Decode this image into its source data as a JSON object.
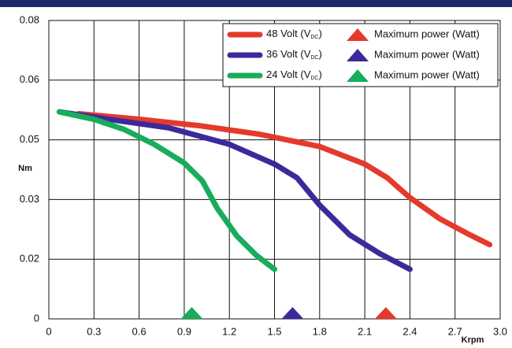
{
  "chart_data": {
    "type": "line",
    "y_label": "Nm",
    "x_label": "Krpm",
    "xlim": [
      0,
      3.0
    ],
    "xticks": [
      0,
      0.3,
      0.6,
      0.9,
      1.2,
      1.5,
      1.8,
      2.1,
      2.4,
      2.7,
      {
        "value": 3.0,
        "label": "3.0"
      }
    ],
    "ylim": [
      0,
      0.08
    ],
    "yticks": [
      0,
      {
        "value": 0.016,
        "label": "0.02"
      },
      {
        "value": 0.032,
        "label": "0.03"
      },
      {
        "value": 0.048,
        "label": "0.05"
      },
      {
        "value": 0.064,
        "label": "0.06"
      },
      0.08
    ],
    "grid": true,
    "legend": "upper right",
    "series": [
      {
        "legend_label": [
          "48 Volt (V",
          "DC",
          ")"
        ],
        "color": "#e43a2c",
        "x": [
          0.2,
          0.6,
          1.0,
          1.4,
          1.8,
          2.1,
          2.25,
          2.4,
          2.6,
          2.8,
          2.93
        ],
        "values": [
          0.055,
          0.0535,
          0.0518,
          0.0495,
          0.0462,
          0.0415,
          0.0378,
          0.0325,
          0.0268,
          0.0225,
          0.0199
        ],
        "max_power_label": "Maximum power (Watt)",
        "max_power_x": 2.24
      },
      {
        "legend_label": [
          "36 Volt (V",
          "DC",
          ")"
        ],
        "color": "#3b2a9b",
        "x": [
          0.07,
          0.4,
          0.8,
          1.2,
          1.5,
          1.65,
          1.8,
          2.0,
          2.2,
          2.4
        ],
        "values": [
          0.0555,
          0.0535,
          0.0512,
          0.0468,
          0.0415,
          0.0378,
          0.0305,
          0.0225,
          0.0175,
          0.0133
        ],
        "max_power_label": "Maximum power (Watt)",
        "max_power_x": 1.62
      },
      {
        "legend_label": [
          "24 Volt (V",
          "DC",
          ")"
        ],
        "color": "#17ad5c",
        "x": [
          0.07,
          0.3,
          0.5,
          0.7,
          0.9,
          1.02,
          1.12,
          1.25,
          1.38,
          1.5
        ],
        "values": [
          0.0555,
          0.0535,
          0.0508,
          0.0468,
          0.0418,
          0.037,
          0.0296,
          0.0222,
          0.017,
          0.0133
        ],
        "max_power_label": "Maximum power (Watt)",
        "max_power_x": 0.95
      }
    ]
  }
}
